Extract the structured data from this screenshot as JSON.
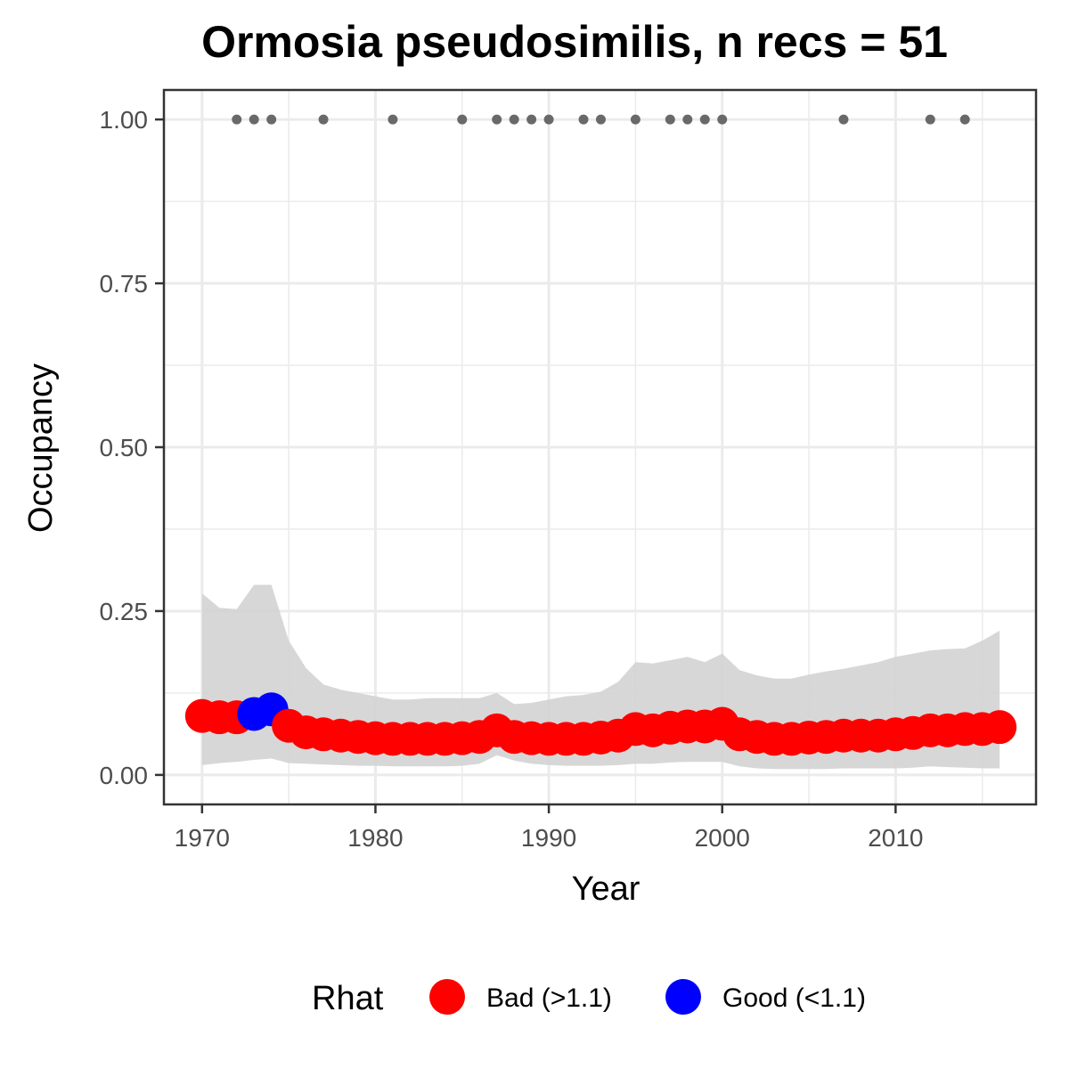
{
  "chart_data": {
    "type": "scatter",
    "title": "Ormosia pseudosimilis, n recs = 51",
    "xlabel": "Year",
    "ylabel": "Occupancy",
    "xlim": [
      1967.8,
      2018.1
    ],
    "ylim": [
      -0.045,
      1.045
    ],
    "x_ticks": [
      1970,
      1980,
      1990,
      2000,
      2010
    ],
    "x_tick_labels": [
      "1970",
      "1980",
      "1990",
      "2000",
      "2010"
    ],
    "y_ticks": [
      0,
      0.25,
      0.5,
      0.75,
      1
    ],
    "y_tick_labels": [
      "0.00",
      "0.25",
      "0.50",
      "0.75",
      "1.00"
    ],
    "grid": true,
    "legend": {
      "title": "Rhat",
      "position": "bottom",
      "entries": [
        {
          "label": "Bad (>1.1)",
          "color": "#ff0000"
        },
        {
          "label": "Good (<1.1)",
          "color": "#0000ff"
        }
      ]
    },
    "colors": {
      "bad": "#ff0000",
      "good": "#0000ff",
      "ribbon": "#d3d3d3",
      "records": "#696969"
    },
    "records_years": [
      1972,
      1973,
      1974,
      1977,
      1981,
      1985,
      1987,
      1988,
      1989,
      1990,
      1992,
      1993,
      1995,
      1997,
      1998,
      1999,
      2000,
      2007,
      2012,
      2014
    ],
    "records_value": 1.0,
    "series": [
      {
        "years": [
          1970,
          1971,
          1972,
          1973,
          1974,
          1975,
          1976,
          1977,
          1978,
          1979,
          1980,
          1981,
          1982,
          1983,
          1984,
          1985,
          1986,
          1987,
          1988,
          1989,
          1990,
          1991,
          1992,
          1993,
          1994,
          1995,
          1996,
          1997,
          1998,
          1999,
          2000,
          2001,
          2002,
          2003,
          2004,
          2005,
          2006,
          2007,
          2008,
          2009,
          2010,
          2011,
          2012,
          2013,
          2014,
          2015,
          2016
        ],
        "mean": [
          0.09,
          0.088,
          0.088,
          0.093,
          0.1,
          0.075,
          0.065,
          0.062,
          0.06,
          0.058,
          0.056,
          0.055,
          0.055,
          0.055,
          0.055,
          0.056,
          0.058,
          0.068,
          0.058,
          0.056,
          0.055,
          0.055,
          0.055,
          0.057,
          0.06,
          0.07,
          0.068,
          0.072,
          0.074,
          0.074,
          0.078,
          0.062,
          0.058,
          0.055,
          0.055,
          0.057,
          0.058,
          0.06,
          0.06,
          0.06,
          0.062,
          0.064,
          0.068,
          0.068,
          0.07,
          0.07,
          0.073
        ],
        "lower": [
          0.015,
          0.018,
          0.02,
          0.023,
          0.025,
          0.018,
          0.017,
          0.016,
          0.015,
          0.014,
          0.014,
          0.013,
          0.013,
          0.013,
          0.013,
          0.014,
          0.017,
          0.03,
          0.022,
          0.017,
          0.015,
          0.014,
          0.014,
          0.014,
          0.015,
          0.017,
          0.017,
          0.019,
          0.02,
          0.02,
          0.02,
          0.013,
          0.01,
          0.009,
          0.009,
          0.009,
          0.009,
          0.01,
          0.01,
          0.01,
          0.01,
          0.011,
          0.013,
          0.012,
          0.011,
          0.01,
          0.01
        ],
        "upper": [
          0.277,
          0.255,
          0.253,
          0.29,
          0.29,
          0.205,
          0.163,
          0.138,
          0.13,
          0.125,
          0.12,
          0.115,
          0.115,
          0.117,
          0.117,
          0.117,
          0.117,
          0.125,
          0.108,
          0.11,
          0.115,
          0.12,
          0.122,
          0.127,
          0.142,
          0.172,
          0.17,
          0.175,
          0.18,
          0.172,
          0.185,
          0.16,
          0.152,
          0.147,
          0.147,
          0.153,
          0.158,
          0.162,
          0.167,
          0.172,
          0.18,
          0.185,
          0.19,
          0.192,
          0.193,
          0.205,
          0.22
        ],
        "rhat_good": [
          false,
          false,
          false,
          true,
          true,
          false,
          false,
          false,
          false,
          false,
          false,
          false,
          false,
          false,
          false,
          false,
          false,
          false,
          false,
          false,
          false,
          false,
          false,
          false,
          false,
          false,
          false,
          false,
          false,
          false,
          false,
          false,
          false,
          false,
          false,
          false,
          false,
          false,
          false,
          false,
          false,
          false,
          false,
          false,
          false,
          false,
          false
        ]
      }
    ]
  }
}
